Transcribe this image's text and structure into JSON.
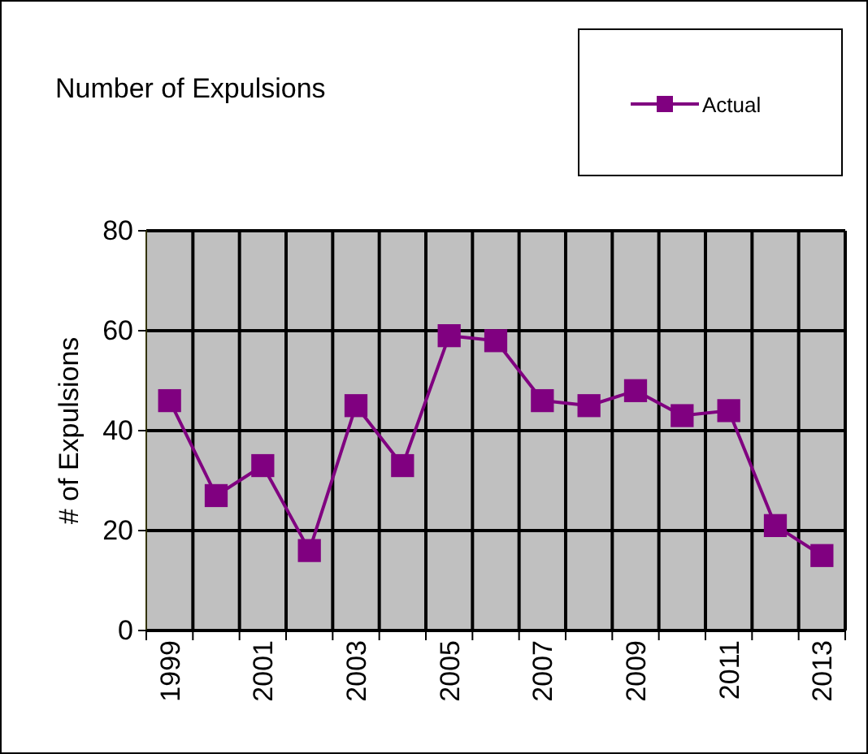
{
  "chart_data": {
    "type": "line",
    "title": "Number of Expulsions",
    "ylabel": "# of Expulsions",
    "categories": [
      "1999",
      null,
      "2001",
      null,
      "2003",
      null,
      "2005",
      null,
      "2007",
      null,
      "2009",
      null,
      "2011",
      null,
      "2013"
    ],
    "series": [
      {
        "name": "Actual",
        "color": "#800080",
        "values": [
          46,
          27,
          33,
          16,
          45,
          33,
          59,
          58,
          46,
          45,
          48,
          43,
          44,
          21,
          15
        ]
      }
    ],
    "ylim": [
      0,
      80
    ],
    "yticks": [
      0,
      20,
      40,
      60,
      80
    ],
    "grid": true,
    "legend": "top right",
    "marker": "square"
  }
}
